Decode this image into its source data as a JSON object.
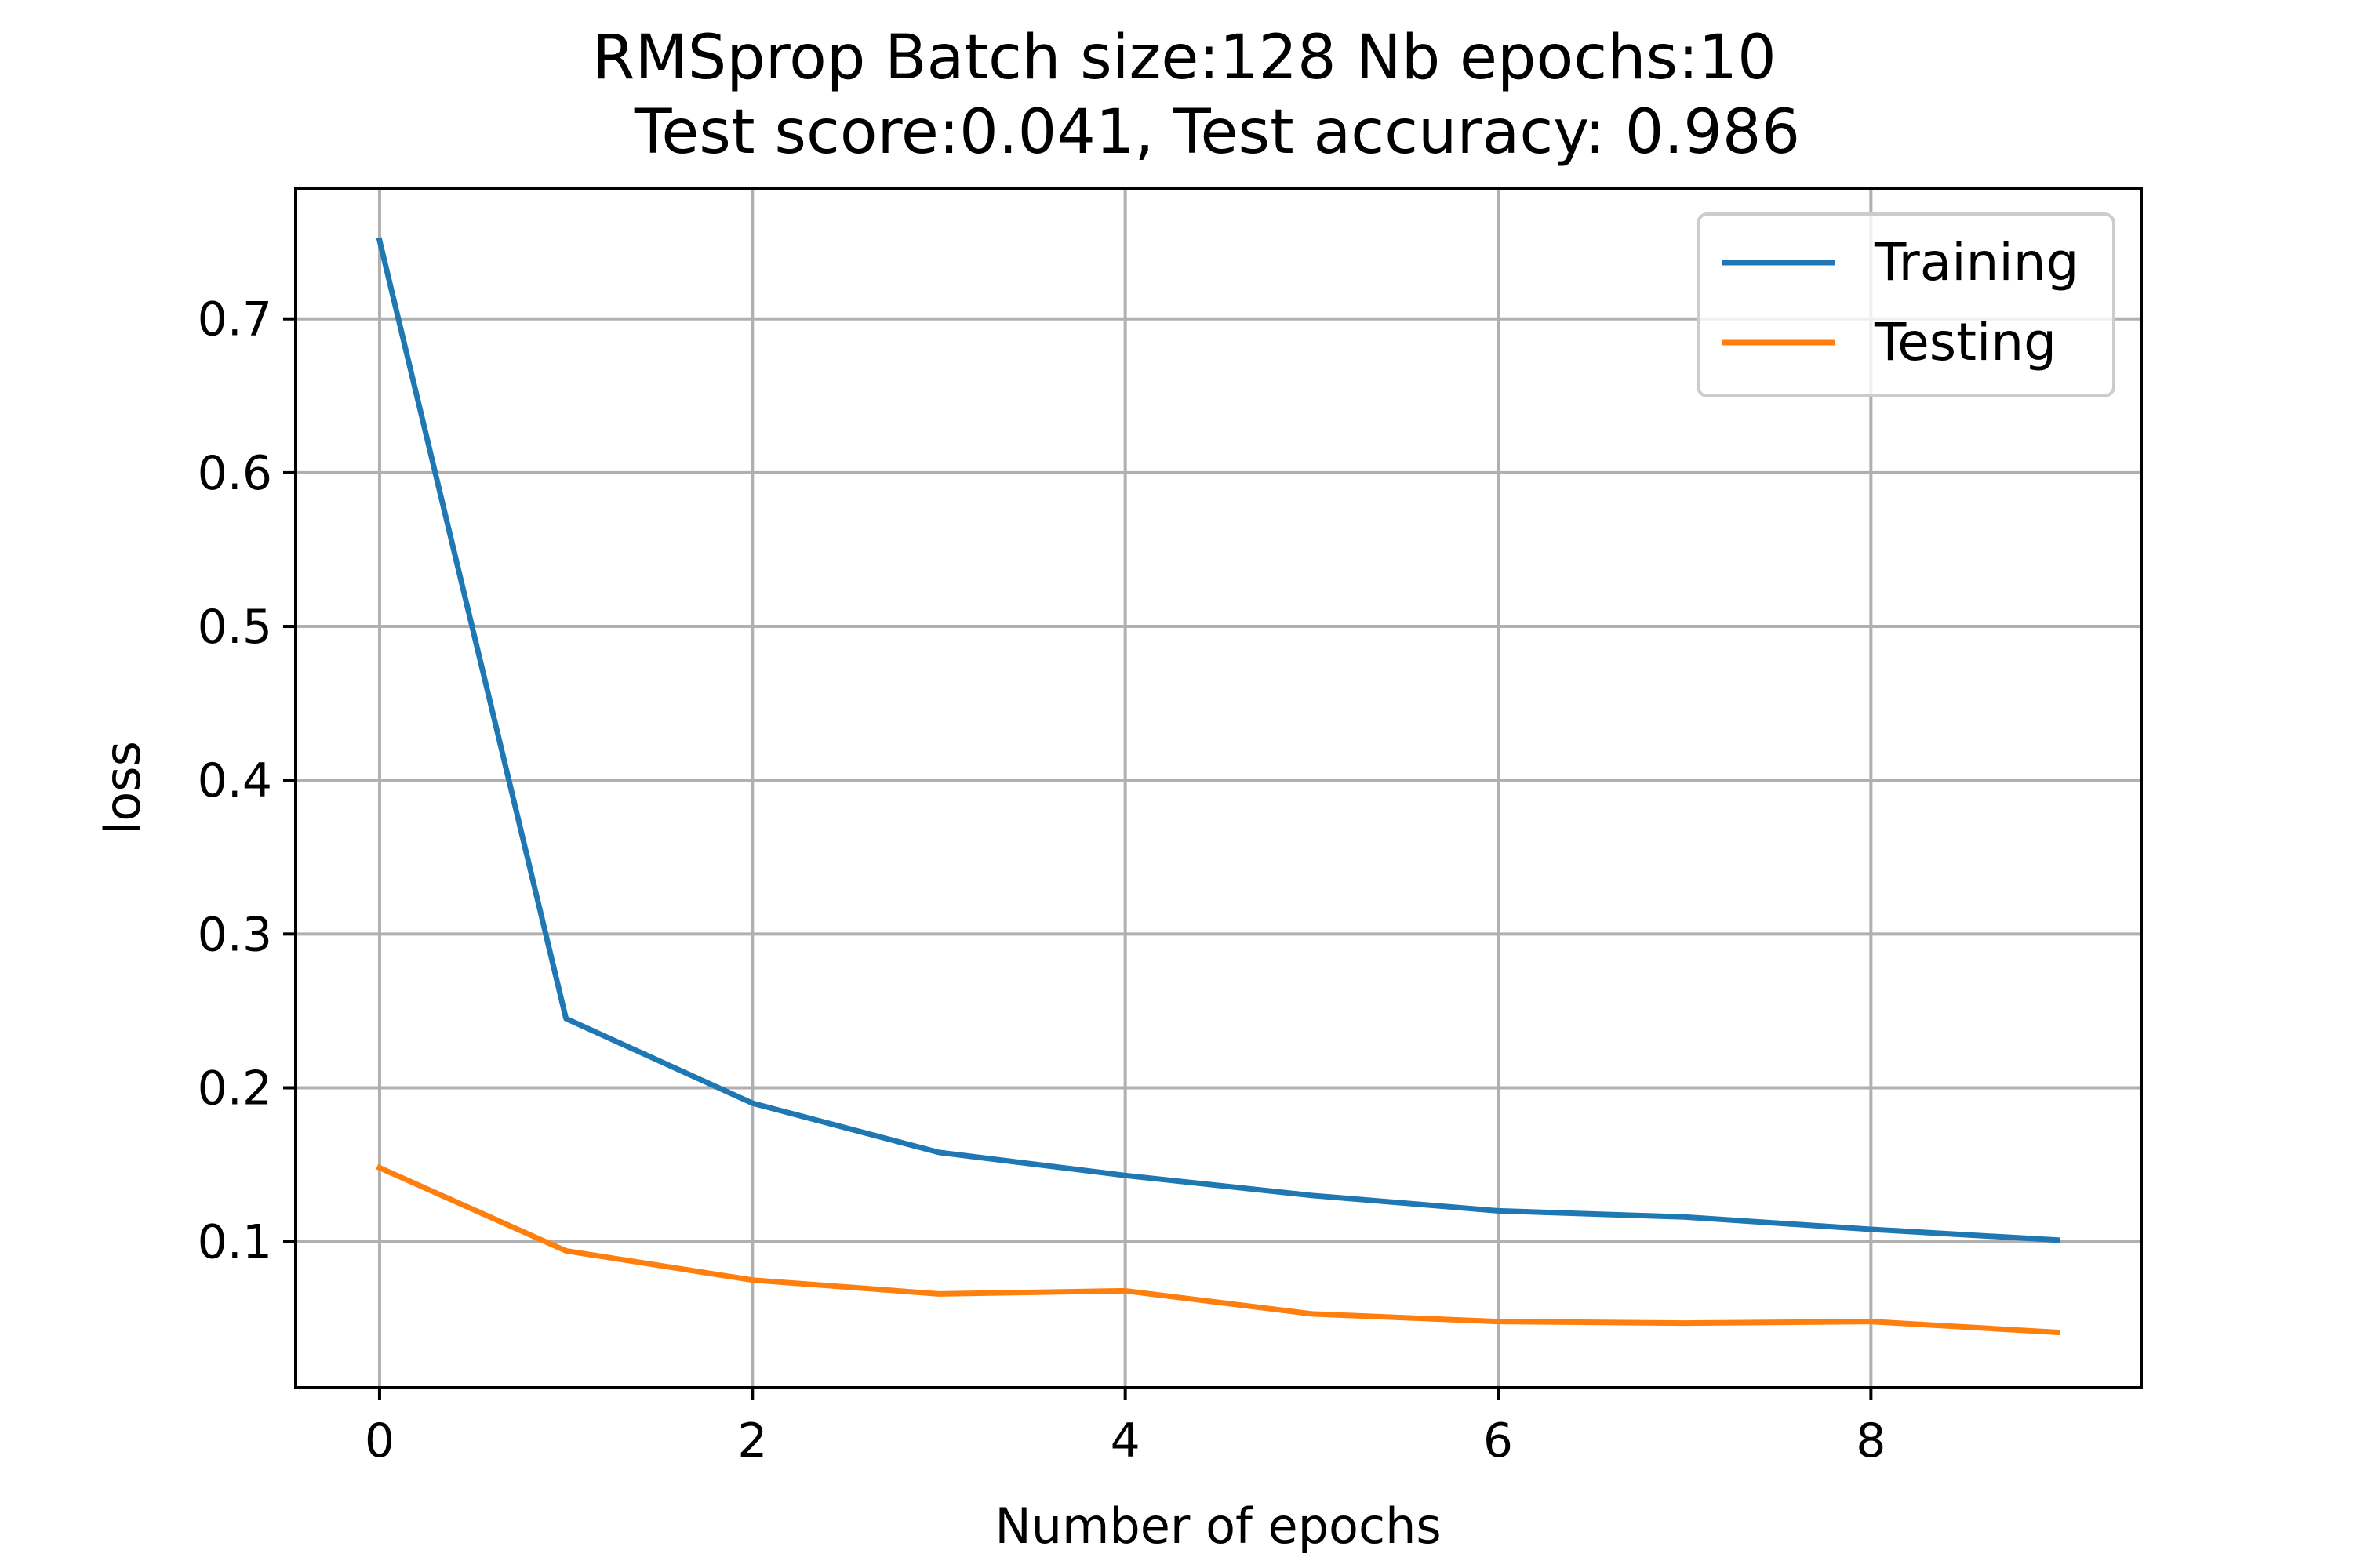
{
  "chart_data": {
    "type": "line",
    "title": "RMSprop Batch size:128 Nb epochs:10",
    "subtitle": "Test score:0.041, Test accuracy: 0.986",
    "xlabel": "Number of epochs",
    "ylabel": "loss",
    "x": [
      0,
      1,
      2,
      3,
      4,
      5,
      6,
      7,
      8,
      9
    ],
    "xlim": [
      -0.45,
      9.45
    ],
    "ylim": [
      0.005,
      0.785
    ],
    "xticks": [
      0,
      2,
      4,
      6,
      8
    ],
    "yticks": [
      0.1,
      0.2,
      0.3,
      0.4,
      0.5,
      0.6,
      0.7
    ],
    "xtick_labels": [
      "0",
      "2",
      "4",
      "6",
      "8"
    ],
    "ytick_labels": [
      "0.1",
      "0.2",
      "0.3",
      "0.4",
      "0.5",
      "0.6",
      "0.7"
    ],
    "grid": true,
    "legend_position": "top-right",
    "series": [
      {
        "name": "Training",
        "color": "#1f77b4",
        "values": [
          0.751,
          0.245,
          0.19,
          0.158,
          0.143,
          0.13,
          0.12,
          0.116,
          0.108,
          0.101
        ]
      },
      {
        "name": "Testing",
        "color": "#ff7f0e",
        "values": [
          0.148,
          0.094,
          0.075,
          0.066,
          0.068,
          0.053,
          0.048,
          0.047,
          0.048,
          0.041
        ]
      }
    ]
  }
}
